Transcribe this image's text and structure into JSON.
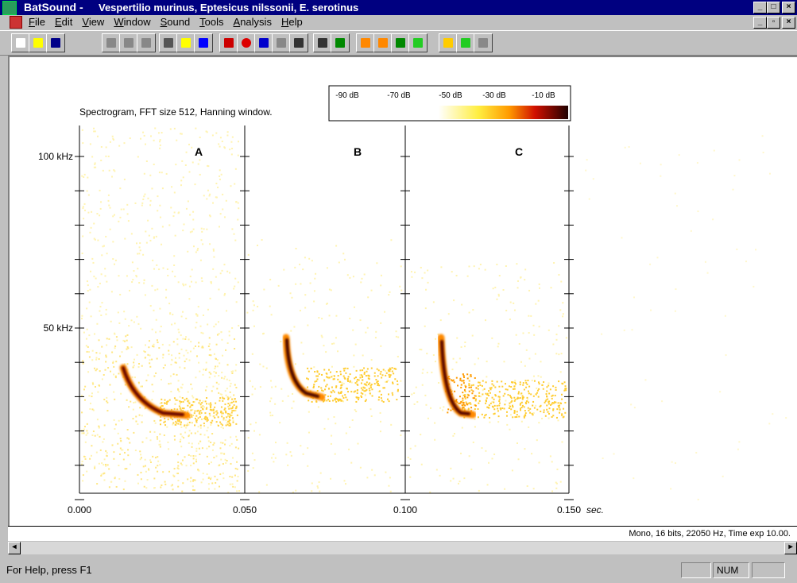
{
  "window": {
    "app": "BatSound -",
    "title": "Vespertilio murinus, Eptesicus nilssonii, E. serotinus"
  },
  "menu": [
    "File",
    "Edit",
    "View",
    "Window",
    "Sound",
    "Tools",
    "Analysis",
    "Help"
  ],
  "spectrogram": {
    "caption": "Spectrogram, FFT size 512, Hanning window.",
    "scale_labels": [
      "-90 dB",
      "-70 dB",
      "-50 dB",
      "-30 dB",
      "-10 dB"
    ],
    "y_labels": [
      "100 kHz",
      "50 kHz"
    ],
    "panels": [
      "A",
      "B",
      "C"
    ],
    "x_labels": [
      "0.000",
      "0.050",
      "0.100",
      "0.150"
    ],
    "x_unit": "sec."
  },
  "info": "Mono, 16 bits, 22050 Hz, Time exp 10.00.",
  "status": {
    "help": "For Help, press F1",
    "indicator": "NUM"
  }
}
